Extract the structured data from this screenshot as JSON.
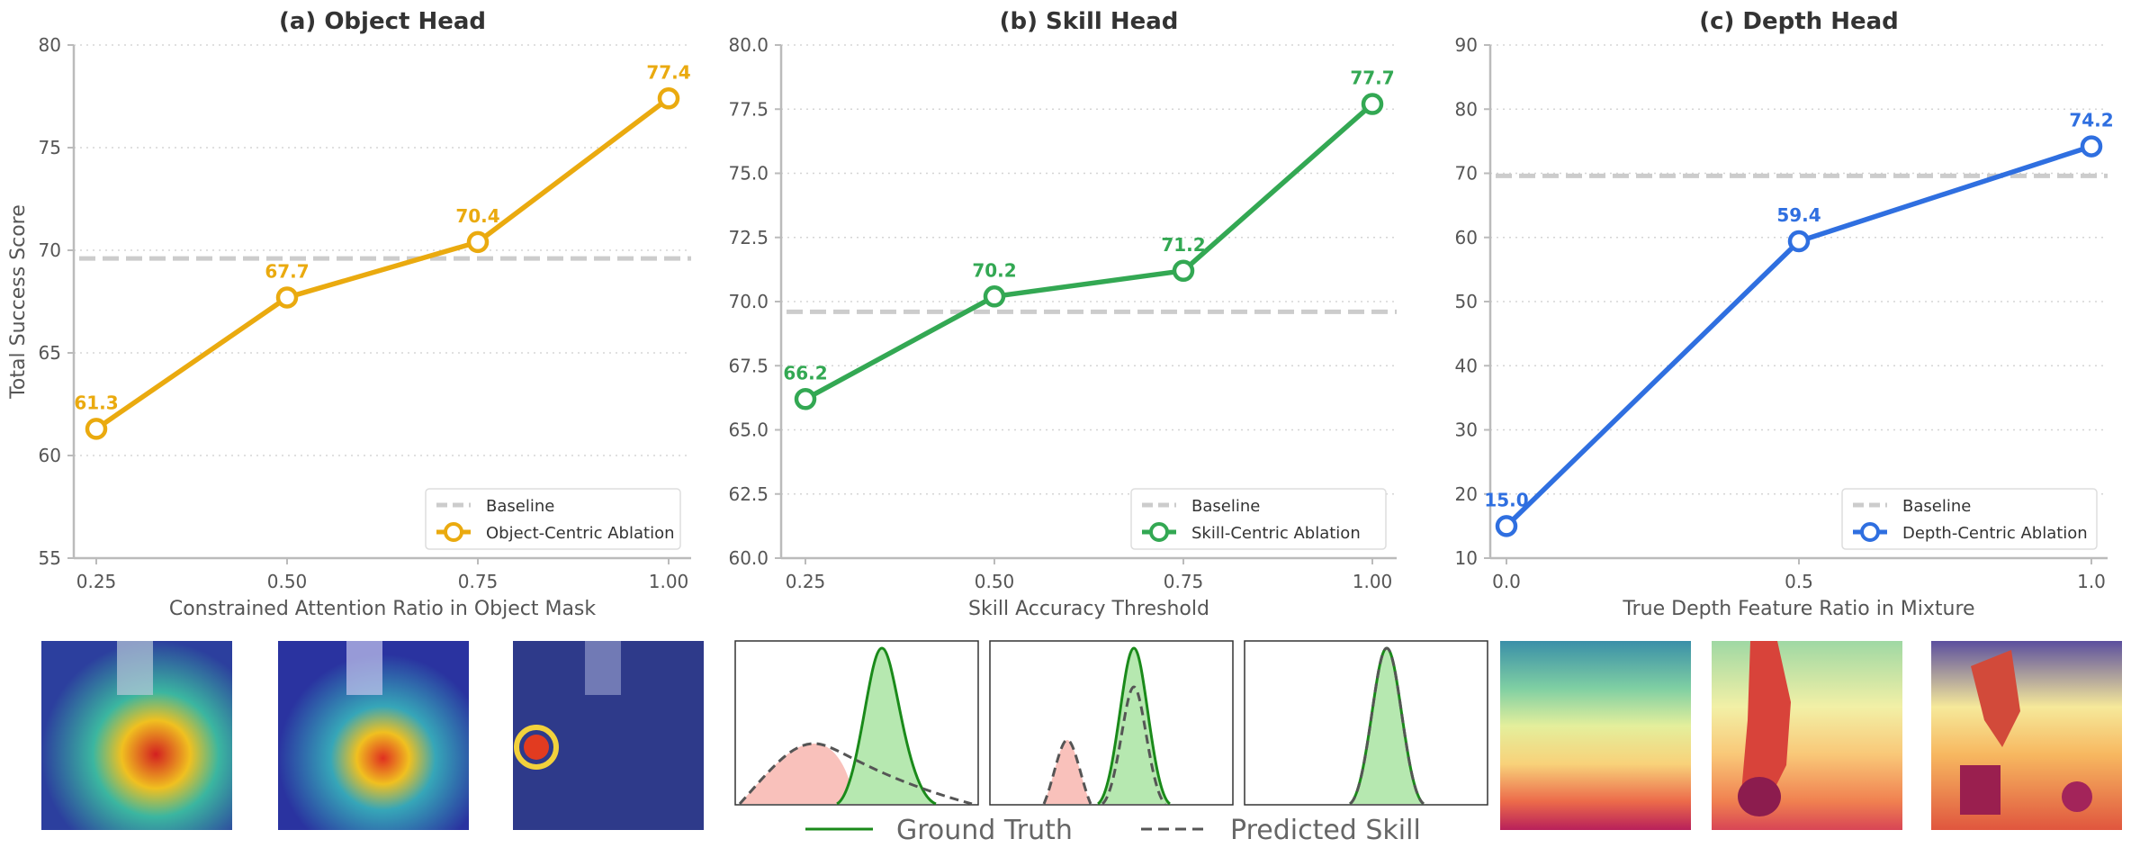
{
  "chart_data": [
    {
      "type": "line",
      "title": "(a) Object Head",
      "xlabel": "Constrained Attention Ratio in Object Mask",
      "ylabel": "Total Success Score",
      "x": [
        0.25,
        0.5,
        0.75,
        1.0
      ],
      "x_ticks": [
        "0.25",
        "0.50",
        "0.75",
        "1.00"
      ],
      "ylim": [
        55,
        80
      ],
      "y_ticks": [
        "55",
        "60",
        "65",
        "70",
        "75",
        "80"
      ],
      "y_tick_values": [
        55,
        60,
        65,
        70,
        75,
        80
      ],
      "baseline": 69.6,
      "series": [
        {
          "name": "Object-Centric Ablation",
          "values": [
            61.3,
            67.7,
            70.4,
            77.4
          ],
          "labels": [
            "61.3",
            "67.7",
            "70.4",
            "77.4"
          ],
          "color": "#EAAA0F"
        }
      ],
      "legend": {
        "baseline_label": "Baseline",
        "position": "lower-right"
      },
      "grid": "y-dotted"
    },
    {
      "type": "line",
      "title": "(b) Skill Head",
      "xlabel": "Skill Accuracy Threshold",
      "ylabel": "",
      "x": [
        0.25,
        0.5,
        0.75,
        1.0
      ],
      "x_ticks": [
        "0.25",
        "0.50",
        "0.75",
        "1.00"
      ],
      "ylim": [
        60,
        80
      ],
      "y_ticks": [
        "60.0",
        "62.5",
        "65.0",
        "67.5",
        "70.0",
        "72.5",
        "75.0",
        "77.5",
        "80.0"
      ],
      "y_tick_values": [
        60,
        62.5,
        65,
        67.5,
        70,
        72.5,
        75,
        77.5,
        80
      ],
      "baseline": 69.6,
      "series": [
        {
          "name": "Skill-Centric Ablation",
          "values": [
            66.2,
            70.2,
            71.2,
            77.7
          ],
          "labels": [
            "66.2",
            "70.2",
            "71.2",
            "77.7"
          ],
          "color": "#33A853"
        }
      ],
      "legend": {
        "baseline_label": "Baseline",
        "position": "lower-right"
      },
      "grid": "y-dotted"
    },
    {
      "type": "line",
      "title": "(c) Depth Head",
      "xlabel": "True Depth Feature Ratio in Mixture",
      "ylabel": "",
      "x": [
        0.0,
        0.5,
        1.0
      ],
      "x_ticks": [
        "0.0",
        "0.5",
        "1.0"
      ],
      "ylim": [
        10,
        90
      ],
      "y_ticks": [
        "10",
        "20",
        "30",
        "40",
        "50",
        "60",
        "70",
        "80",
        "90"
      ],
      "y_tick_values": [
        10,
        20,
        30,
        40,
        50,
        60,
        70,
        80,
        90
      ],
      "baseline": 69.6,
      "series": [
        {
          "name": "Depth-Centric Ablation",
          "values": [
            15.0,
            59.4,
            74.2
          ],
          "labels": [
            "15.0",
            "59.4",
            "74.2"
          ],
          "color": "#2F6FE0"
        }
      ],
      "legend": {
        "baseline_label": "Baseline",
        "position": "lower-right"
      },
      "grid": "y-dotted"
    }
  ],
  "bottom_legend": {
    "ground_truth": "Ground Truth",
    "predicted": "Predicted Skill"
  },
  "colors": {
    "baseline": "#cccccc",
    "axis": "#bbbbbb",
    "text": "#555555",
    "gt_line": "#1a8a1a",
    "gt_fill": "#b6e8b0",
    "pred_line": "#555555",
    "err_fill": "#f9c1bb"
  }
}
